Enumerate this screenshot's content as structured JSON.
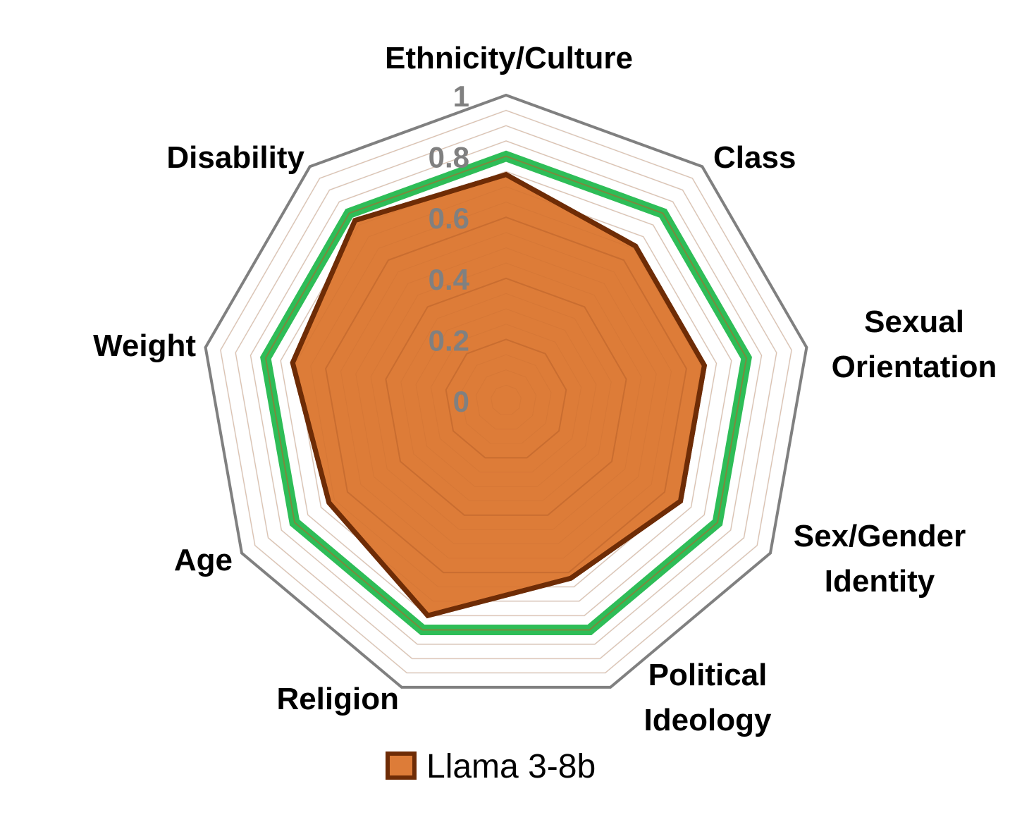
{
  "chart_data": {
    "type": "radar",
    "categories": [
      [
        "Ethnicity/Culture"
      ],
      [
        "Class"
      ],
      [
        "Sexual",
        "Orientation"
      ],
      [
        "Sex/Gender",
        "Identity"
      ],
      [
        "Political",
        "Ideology"
      ],
      [
        "Religion"
      ],
      [
        "Age"
      ],
      [
        "Weight"
      ],
      [
        "Disability"
      ]
    ],
    "rlim": [
      0,
      1
    ],
    "ticks": [
      "0",
      "0.2",
      "0.4",
      "0.6",
      "0.8",
      "1"
    ],
    "tick_values": [
      0,
      0.2,
      0.4,
      0.6,
      0.8,
      1
    ],
    "minor_gridlines": 0.05,
    "series": [
      {
        "name": "",
        "style": "outline",
        "color": "#2EBD57",
        "values": [
          0.8,
          0.8,
          0.8,
          0.8,
          0.8,
          0.8,
          0.8,
          0.8,
          0.8
        ],
        "in_legend": false
      },
      {
        "name": "Llama 3-8b",
        "style": "filled",
        "fill": "#DD7C38",
        "color": "#6E2C06",
        "values": [
          0.74,
          0.66,
          0.66,
          0.66,
          0.62,
          0.75,
          0.67,
          0.71,
          0.77
        ],
        "in_legend": true
      }
    ],
    "legend": {
      "position": "bottom",
      "label": "Llama 3-8b"
    },
    "outer_frame_color": "#808080",
    "grid_color": "#D9D9D9"
  }
}
